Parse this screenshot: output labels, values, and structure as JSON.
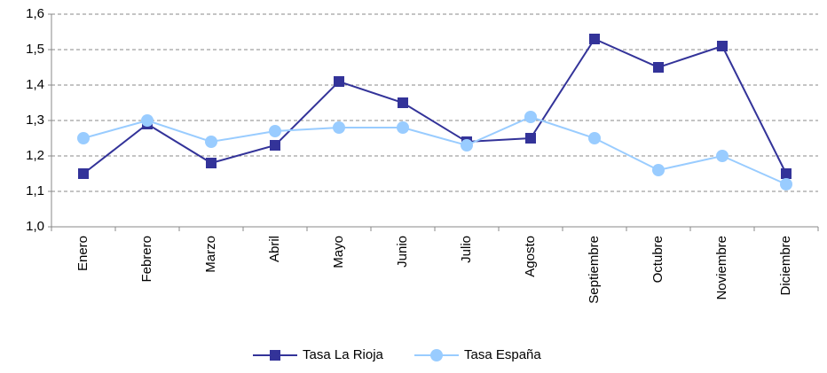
{
  "chart_data": {
    "type": "line",
    "categories": [
      "Enero",
      "Febrero",
      "Marzo",
      "Abril",
      "Mayo",
      "Junio",
      "Julio",
      "Agosto",
      "Septiembre",
      "Octubre",
      "Noviembre",
      "Diciembre"
    ],
    "series": [
      {
        "name": "Tasa La Rioja",
        "color": "#333399",
        "marker": "square",
        "values": [
          1.15,
          1.29,
          1.18,
          1.23,
          1.41,
          1.35,
          1.24,
          1.25,
          1.53,
          1.45,
          1.51,
          1.15
        ]
      },
      {
        "name": "Tasa España",
        "color": "#99ccff",
        "marker": "circle",
        "values": [
          1.25,
          1.3,
          1.24,
          1.27,
          1.28,
          1.28,
          1.23,
          1.31,
          1.25,
          1.16,
          1.2,
          1.12
        ]
      }
    ],
    "ylim": [
      1.0,
      1.6
    ],
    "yticks": [
      {
        "value": 1.0,
        "label": "1,0"
      },
      {
        "value": 1.1,
        "label": "1,1"
      },
      {
        "value": 1.2,
        "label": "1,2"
      },
      {
        "value": 1.3,
        "label": "1,3"
      },
      {
        "value": 1.4,
        "label": "1,4"
      },
      {
        "value": 1.5,
        "label": "1,5"
      },
      {
        "value": 1.6,
        "label": "1,6"
      }
    ],
    "grid": true,
    "legend": "bottom"
  }
}
